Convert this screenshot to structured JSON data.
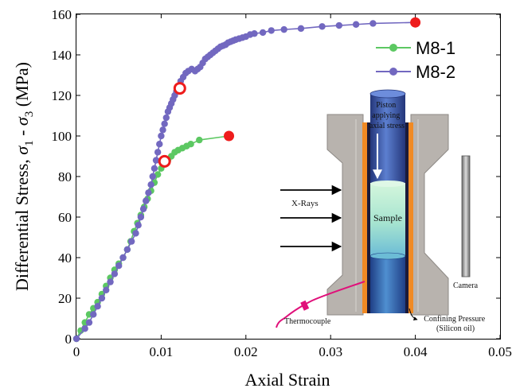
{
  "chart_data": {
    "type": "line",
    "xlabel": "Axial Strain",
    "ylabel": "Differential Stress, σ1 - σ3 (MPa)",
    "ylabel_parts": {
      "prefix": "Differential Stress, ",
      "sigma1": "σ",
      "sub1": "1",
      "mid": " - ",
      "sigma3": "σ",
      "sub3": "3",
      "suffix": " (MPa)"
    },
    "xlim": [
      0,
      0.05
    ],
    "ylim": [
      0,
      160
    ],
    "x_ticks": [
      0,
      0.01,
      0.02,
      0.03,
      0.04,
      0.05
    ],
    "x_tick_labels": [
      "0",
      "0.01",
      "0.02",
      "0.03",
      "0.04",
      "0.05"
    ],
    "y_ticks": [
      0,
      20,
      40,
      60,
      80,
      100,
      120,
      140,
      160
    ],
    "y_tick_labels": [
      "0",
      "20",
      "40",
      "60",
      "80",
      "100",
      "120",
      "140",
      "160"
    ],
    "legend_position": "top-right",
    "series": [
      {
        "name": "M8-1",
        "color": "#5cc862",
        "x": [
          0.0,
          0.0005,
          0.001,
          0.0015,
          0.002,
          0.0025,
          0.003,
          0.0035,
          0.004,
          0.0045,
          0.005,
          0.0055,
          0.006,
          0.0064,
          0.0068,
          0.0072,
          0.0076,
          0.008,
          0.0084,
          0.0088,
          0.0092,
          0.0096,
          0.01,
          0.0104,
          0.0108,
          0.0112,
          0.0116,
          0.012,
          0.0125,
          0.013,
          0.0135,
          0.0145,
          0.018
        ],
        "y": [
          0,
          4,
          8,
          12,
          15,
          18,
          22,
          26,
          30,
          34,
          37,
          40,
          44,
          48,
          53,
          57,
          61,
          65,
          69,
          73,
          77,
          81,
          84,
          86,
          88,
          90,
          92,
          93,
          94,
          95,
          96,
          98,
          100
        ]
      },
      {
        "name": "M8-2",
        "color": "#7268c0",
        "x": [
          0.0,
          0.001,
          0.0015,
          0.002,
          0.0025,
          0.003,
          0.0035,
          0.004,
          0.0045,
          0.005,
          0.0055,
          0.006,
          0.0065,
          0.007,
          0.0073,
          0.0076,
          0.0079,
          0.0082,
          0.0085,
          0.0088,
          0.009,
          0.0092,
          0.0094,
          0.0096,
          0.0098,
          0.01,
          0.0102,
          0.0104,
          0.0106,
          0.0108,
          0.011,
          0.0112,
          0.0114,
          0.0116,
          0.0118,
          0.012,
          0.0123,
          0.0126,
          0.0129,
          0.0132,
          0.0136,
          0.014,
          0.0143,
          0.0146,
          0.0149,
          0.0152,
          0.0155,
          0.0158,
          0.0161,
          0.0164,
          0.0167,
          0.017,
          0.0173,
          0.0176,
          0.0179,
          0.0182,
          0.0185,
          0.0188,
          0.0192,
          0.0196,
          0.02,
          0.0205,
          0.021,
          0.022,
          0.023,
          0.0245,
          0.0265,
          0.029,
          0.031,
          0.033,
          0.035,
          0.04
        ],
        "y": [
          0,
          5,
          8,
          12,
          16,
          20,
          24,
          28,
          32,
          36,
          40,
          44,
          48,
          52,
          56,
          60,
          64,
          68,
          72,
          76,
          80,
          84,
          88,
          92,
          96,
          100,
          103,
          106,
          109,
          112,
          114,
          116,
          118,
          120,
          122,
          124,
          127,
          129,
          131,
          132,
          133,
          132,
          133,
          134,
          136,
          138,
          139,
          140,
          141,
          142,
          143,
          144,
          144.5,
          145,
          146,
          146.5,
          147,
          147.5,
          148,
          148.5,
          149,
          150,
          150.5,
          151,
          152,
          152.5,
          153,
          154,
          154.5,
          155,
          155.5,
          156
        ]
      }
    ],
    "markers": {
      "open_circles": [
        [
          0.0104,
          87.5
        ],
        [
          0.0122,
          123.5
        ]
      ],
      "filled_circles": [
        [
          0.018,
          100
        ],
        [
          0.04,
          156
        ]
      ],
      "color": "#ee1c1c"
    }
  },
  "inset": {
    "labels": {
      "piston": [
        "Piston",
        "applying",
        "axial stress"
      ],
      "xrays": "X-Rays",
      "sample": "Sample",
      "camera": "Camera",
      "thermocouple": "Thermocouple",
      "confining": [
        "Confining Pressure",
        "(Silicon oil)"
      ]
    },
    "colors": {
      "vessel": "#b8b3ae",
      "vessel_edge": "#8e8a86",
      "orange": "#f08a24",
      "dark": "#1a1a3a",
      "piston": "#3b56a8",
      "sample_top": "#c8f0e0",
      "sample_bottom": "#7ec8d8",
      "thermocouple": "#e0107a",
      "camera": "#a0a0a0"
    }
  }
}
